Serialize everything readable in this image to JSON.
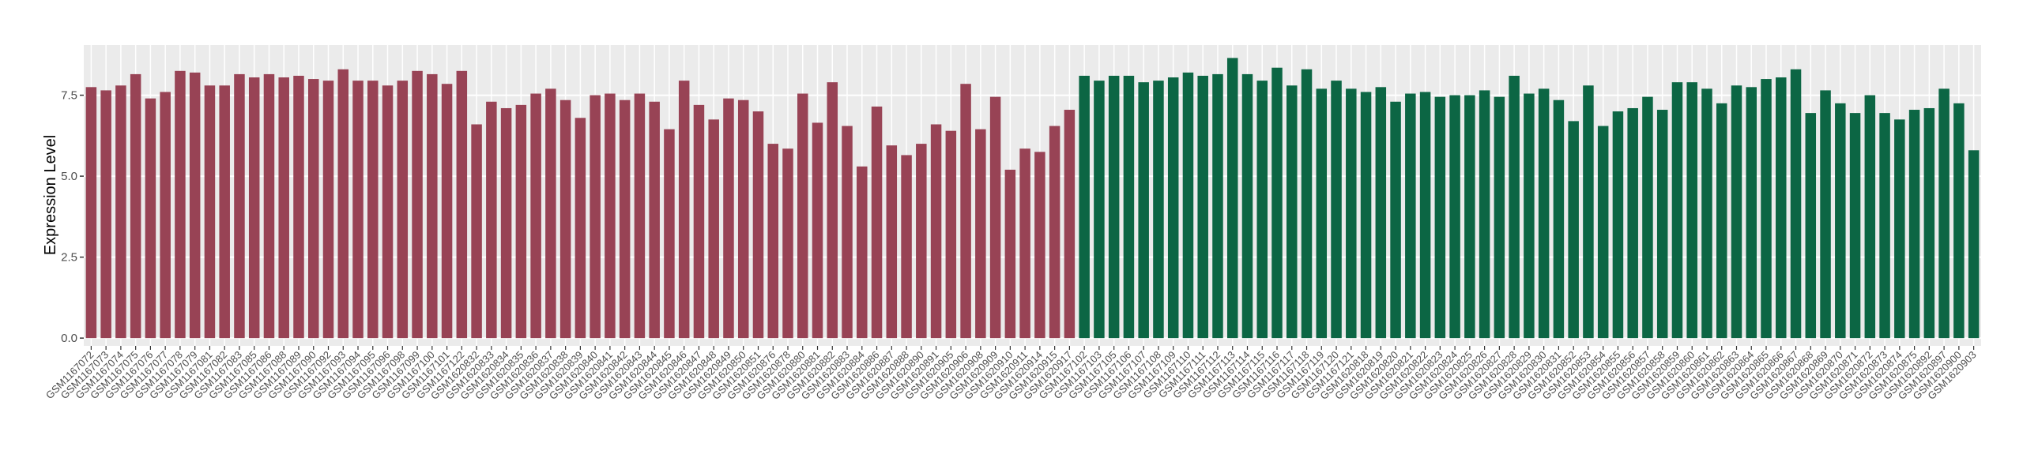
{
  "chart_data": {
    "type": "bar",
    "y_label": "Expression Level",
    "categories": [
      "GSM1167072",
      "GSM1167073",
      "GSM1167074",
      "GSM1167075",
      "GSM1167076",
      "GSM1167077",
      "GSM1167078",
      "GSM1167079",
      "GSM1167081",
      "GSM1167082",
      "GSM1167083",
      "GSM1167085",
      "GSM1167086",
      "GSM1167088",
      "GSM1167089",
      "GSM1167090",
      "GSM1167092",
      "GSM1167093",
      "GSM1167094",
      "GSM1167095",
      "GSM1167096",
      "GSM1167098",
      "GSM1167099",
      "GSM1167100",
      "GSM1167101",
      "GSM1167122",
      "GSM1620832",
      "GSM1620833",
      "GSM1620834",
      "GSM1620835",
      "GSM1620836",
      "GSM1620837",
      "GSM1620838",
      "GSM1620839",
      "GSM1620840",
      "GSM1620841",
      "GSM1620842",
      "GSM1620843",
      "GSM1620844",
      "GSM1620845",
      "GSM1620846",
      "GSM1620847",
      "GSM1620848",
      "GSM1620849",
      "GSM1620850",
      "GSM1620851",
      "GSM1620876",
      "GSM1620878",
      "GSM1620880",
      "GSM1620881",
      "GSM1620882",
      "GSM1620883",
      "GSM1620884",
      "GSM1620886",
      "GSM1620887",
      "GSM1620888",
      "GSM1620890",
      "GSM1620891",
      "GSM1620905",
      "GSM1620906",
      "GSM1620908",
      "GSM1620909",
      "GSM1620910",
      "GSM1620911",
      "GSM1620914",
      "GSM1620915",
      "GSM1620917",
      "GSM1167102",
      "GSM1167103",
      "GSM1167105",
      "GSM1167106",
      "GSM1167107",
      "GSM1167108",
      "GSM1167109",
      "GSM1167110",
      "GSM1167111",
      "GSM1167112",
      "GSM1167113",
      "GSM1167114",
      "GSM1167115",
      "GSM1167116",
      "GSM1167117",
      "GSM1167118",
      "GSM1167119",
      "GSM1167120",
      "GSM1167121",
      "GSM1620818",
      "GSM1620819",
      "GSM1620820",
      "GSM1620821",
      "GSM1620822",
      "GSM1620823",
      "GSM1620824",
      "GSM1620825",
      "GSM1620826",
      "GSM1620827",
      "GSM1620828",
      "GSM1620829",
      "GSM1620830",
      "GSM1620831",
      "GSM1620852",
      "GSM1620853",
      "GSM1620854",
      "GSM1620855",
      "GSM1620856",
      "GSM1620857",
      "GSM1620858",
      "GSM1620859",
      "GSM1620860",
      "GSM1620861",
      "GSM1620862",
      "GSM1620863",
      "GSM1620864",
      "GSM1620865",
      "GSM1620866",
      "GSM1620867",
      "GSM1620868",
      "GSM1620869",
      "GSM1620870",
      "GSM1620871",
      "GSM1620872",
      "GSM1620873",
      "GSM1620874",
      "GSM1620875",
      "GSM1620892",
      "GSM1620897",
      "GSM1620900",
      "GSM1620903"
    ],
    "series": [
      {
        "color": "#984355",
        "values": [
          7.75,
          7.65,
          7.8,
          8.15,
          7.4,
          7.6,
          8.25,
          8.2,
          7.8,
          7.8,
          8.15,
          8.05,
          8.15,
          8.05,
          8.1,
          8.0,
          7.95,
          8.3,
          7.95,
          7.95,
          7.8,
          7.95,
          8.25,
          8.15,
          7.85,
          8.25,
          6.6,
          7.3,
          7.1,
          7.2,
          7.55,
          7.7,
          7.35,
          6.8,
          7.5,
          7.55,
          7.35,
          7.55,
          7.3,
          6.45,
          7.95,
          7.2,
          6.75,
          7.4,
          7.35,
          7.0,
          6.0,
          5.85,
          7.55,
          6.65,
          7.9,
          6.55,
          5.3,
          7.15,
          5.95,
          5.65,
          6.0,
          6.6,
          6.4,
          7.85,
          6.45,
          7.45,
          5.2,
          5.85,
          5.75,
          6.55,
          7.05,
          null,
          null,
          null,
          null,
          null,
          null,
          null,
          null,
          null,
          null,
          null,
          null,
          null,
          null,
          null,
          null,
          null,
          null,
          null,
          null,
          null,
          null,
          null,
          null,
          null,
          null,
          null,
          null,
          null,
          null,
          null,
          null,
          null,
          null,
          null,
          null,
          null,
          null,
          null,
          null,
          null,
          null,
          null,
          null,
          null,
          null,
          null,
          null,
          null,
          null,
          null,
          null,
          null,
          null,
          null,
          null,
          null,
          null,
          null,
          null,
          null
        ]
      },
      {
        "color": "#0c6644",
        "values": [
          null,
          null,
          null,
          null,
          null,
          null,
          null,
          null,
          null,
          null,
          null,
          null,
          null,
          null,
          null,
          null,
          null,
          null,
          null,
          null,
          null,
          null,
          null,
          null,
          null,
          null,
          null,
          null,
          null,
          null,
          null,
          null,
          null,
          null,
          null,
          null,
          null,
          null,
          null,
          null,
          null,
          null,
          null,
          null,
          null,
          null,
          null,
          null,
          null,
          null,
          null,
          null,
          null,
          null,
          null,
          null,
          null,
          null,
          null,
          null,
          null,
          null,
          null,
          null,
          null,
          null,
          null,
          8.1,
          7.95,
          8.1,
          8.1,
          7.9,
          7.95,
          8.05,
          8.2,
          8.1,
          8.15,
          8.65,
          8.15,
          7.95,
          8.35,
          7.8,
          8.3,
          7.7,
          7.95,
          7.7,
          7.6,
          7.75,
          7.3,
          7.55,
          7.6,
          7.45,
          7.5,
          7.5,
          7.65,
          7.45,
          8.1,
          7.55,
          7.7,
          7.35,
          6.7,
          7.8,
          6.55,
          7.0,
          7.1,
          7.45,
          7.05,
          7.9,
          7.9,
          7.7,
          7.25,
          7.8,
          7.75,
          8.0,
          8.05,
          8.3,
          6.95,
          7.65,
          7.25,
          6.95,
          7.5,
          6.95,
          6.75,
          7.05,
          7.1,
          7.7,
          7.25,
          5.8
        ]
      }
    ],
    "ylim": [
      -0.24,
      9.05
    ],
    "yticks": [
      {
        "value": 0,
        "label": "0.0"
      },
      2.5,
      {
        "value": 5,
        "label": "5.0"
      },
      7.5
    ],
    "grid": true
  }
}
